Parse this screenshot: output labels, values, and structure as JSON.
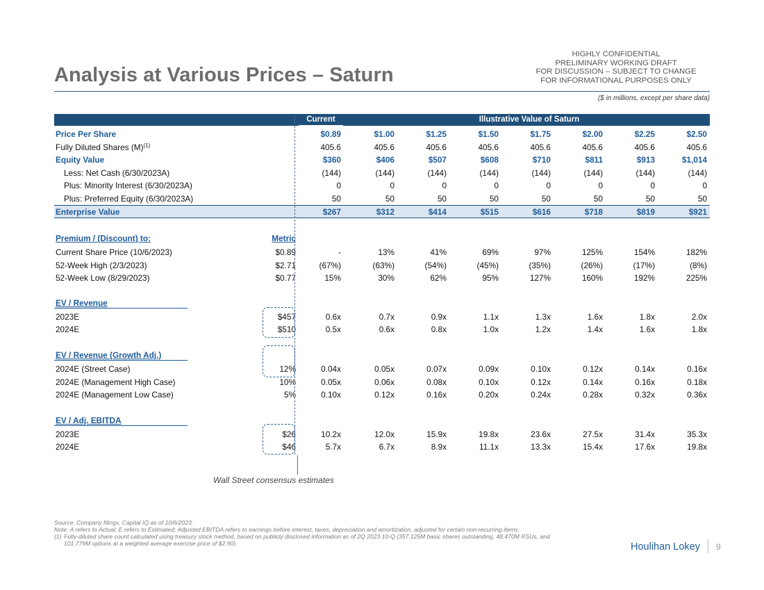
{
  "title": "Analysis at Various Prices – Saturn",
  "confidential": [
    "HIGHLY CONFIDENTIAL",
    "PRELIMINARY WORKING DRAFT",
    "FOR DISCUSSION – SUBJECT TO CHANGE",
    "FOR INFORMATIONAL PURPOSES ONLY"
  ],
  "units_note": "($ in millions, except per share data)",
  "header": {
    "current": "Current",
    "illustrative": "Illustrative Value of Saturn"
  },
  "rows": {
    "price": {
      "label": "Price Per Share",
      "values": [
        "$0.89",
        "$1.00",
        "$1.25",
        "$1.50",
        "$1.75",
        "$2.00",
        "$2.25",
        "$2.50"
      ]
    },
    "shares": {
      "label": "Fully Diluted Shares (M)",
      "sup": "(1)",
      "values": [
        "405.6",
        "405.6",
        "405.6",
        "405.6",
        "405.6",
        "405.6",
        "405.6",
        "405.6"
      ]
    },
    "equity": {
      "label": "Equity Value",
      "values": [
        "$360",
        "$406",
        "$507",
        "$608",
        "$710",
        "$811",
        "$913",
        "$1,014"
      ]
    },
    "net_cash": {
      "label": "Less: Net Cash (6/30/2023A)",
      "values": [
        "(144)",
        "(144)",
        "(144)",
        "(144)",
        "(144)",
        "(144)",
        "(144)",
        "(144)"
      ]
    },
    "minority": {
      "label": "Plus: Minority Interest (6/30/2023A)",
      "values": [
        "0",
        "0",
        "0",
        "0",
        "0",
        "0",
        "0",
        "0"
      ]
    },
    "preferred": {
      "label": "Plus: Preferred Equity (6/30/2023A)",
      "values": [
        "50",
        "50",
        "50",
        "50",
        "50",
        "50",
        "50",
        "50"
      ]
    },
    "ev": {
      "label": "Enterprise Value",
      "values": [
        "$267",
        "$312",
        "$414",
        "$515",
        "$616",
        "$718",
        "$819",
        "$921"
      ]
    }
  },
  "premium": {
    "heading": "Premium / (Discount) to:",
    "metric_heading": "Metric",
    "rows": [
      {
        "label": "Current Share Price (10/6/2023)",
        "metric": "$0.89",
        "values": [
          "-",
          "13%",
          "41%",
          "69%",
          "97%",
          "125%",
          "154%",
          "182%"
        ]
      },
      {
        "label": "52-Week High (2/3/2023)",
        "metric": "$2.71",
        "values": [
          "(67%)",
          "(63%)",
          "(54%)",
          "(45%)",
          "(35%)",
          "(26%)",
          "(17%)",
          "(8%)"
        ]
      },
      {
        "label": "52-Week Low (8/29/2023)",
        "metric": "$0.77",
        "values": [
          "15%",
          "30%",
          "62%",
          "95%",
          "127%",
          "160%",
          "192%",
          "225%"
        ]
      }
    ]
  },
  "ev_revenue": {
    "heading": "EV / Revenue",
    "rows": [
      {
        "label": "2023E",
        "metric": "$457",
        "values": [
          "0.6x",
          "0.7x",
          "0.9x",
          "1.1x",
          "1.3x",
          "1.6x",
          "1.8x",
          "2.0x"
        ]
      },
      {
        "label": "2024E",
        "metric": "$510",
        "values": [
          "0.5x",
          "0.6x",
          "0.8x",
          "1.0x",
          "1.2x",
          "1.4x",
          "1.6x",
          "1.8x"
        ]
      }
    ]
  },
  "ev_growth": {
    "heading": "EV / Revenue (Growth Adj.)",
    "rows": [
      {
        "label": "2024E (Street Case)",
        "metric": "12%",
        "values": [
          "0.04x",
          "0.05x",
          "0.07x",
          "0.09x",
          "0.10x",
          "0.12x",
          "0.14x",
          "0.16x"
        ]
      },
      {
        "label": "2024E (Management High Case)",
        "metric": "10%",
        "values": [
          "0.05x",
          "0.06x",
          "0.08x",
          "0.10x",
          "0.12x",
          "0.14x",
          "0.16x",
          "0.18x"
        ]
      },
      {
        "label": "2024E (Management Low Case)",
        "metric": "5%",
        "values": [
          "0.10x",
          "0.12x",
          "0.16x",
          "0.20x",
          "0.24x",
          "0.28x",
          "0.32x",
          "0.36x"
        ]
      }
    ]
  },
  "ev_ebitda": {
    "heading": "EV / Adj. EBITDA",
    "rows": [
      {
        "label": "2023E",
        "metric": "$26",
        "values": [
          "10.2x",
          "12.0x",
          "15.9x",
          "19.8x",
          "23.6x",
          "27.5x",
          "31.4x",
          "35.3x"
        ]
      },
      {
        "label": "2024E",
        "metric": "$46",
        "values": [
          "5.7x",
          "6.7x",
          "8.9x",
          "11.1x",
          "13.3x",
          "15.4x",
          "17.6x",
          "19.8x"
        ]
      }
    ]
  },
  "callout": "Wall Street consensus estimates",
  "footnotes": {
    "source": "Source: Company filings, Capital IQ as of 10/6/2023.",
    "note": "Note: A refers to Actual; E refers to Estimated; Adjusted EBITDA refers to earnings before interest, taxes, depreciation and amortization, adjusted for certain non-recurring items.",
    "fn1_num": "(1)",
    "fn1_line1": "Fully-diluted share count calculated using treasury stock method, based on publicly disclosed information as of 2Q 2023 10-Q (357.125M basic shares outstanding, 48.470M RSUs, and",
    "fn1_line2": "101.779M options at a weighted average exercise price of $2.90)."
  },
  "brand": "Houlihan Lokey",
  "page_number": "9"
}
